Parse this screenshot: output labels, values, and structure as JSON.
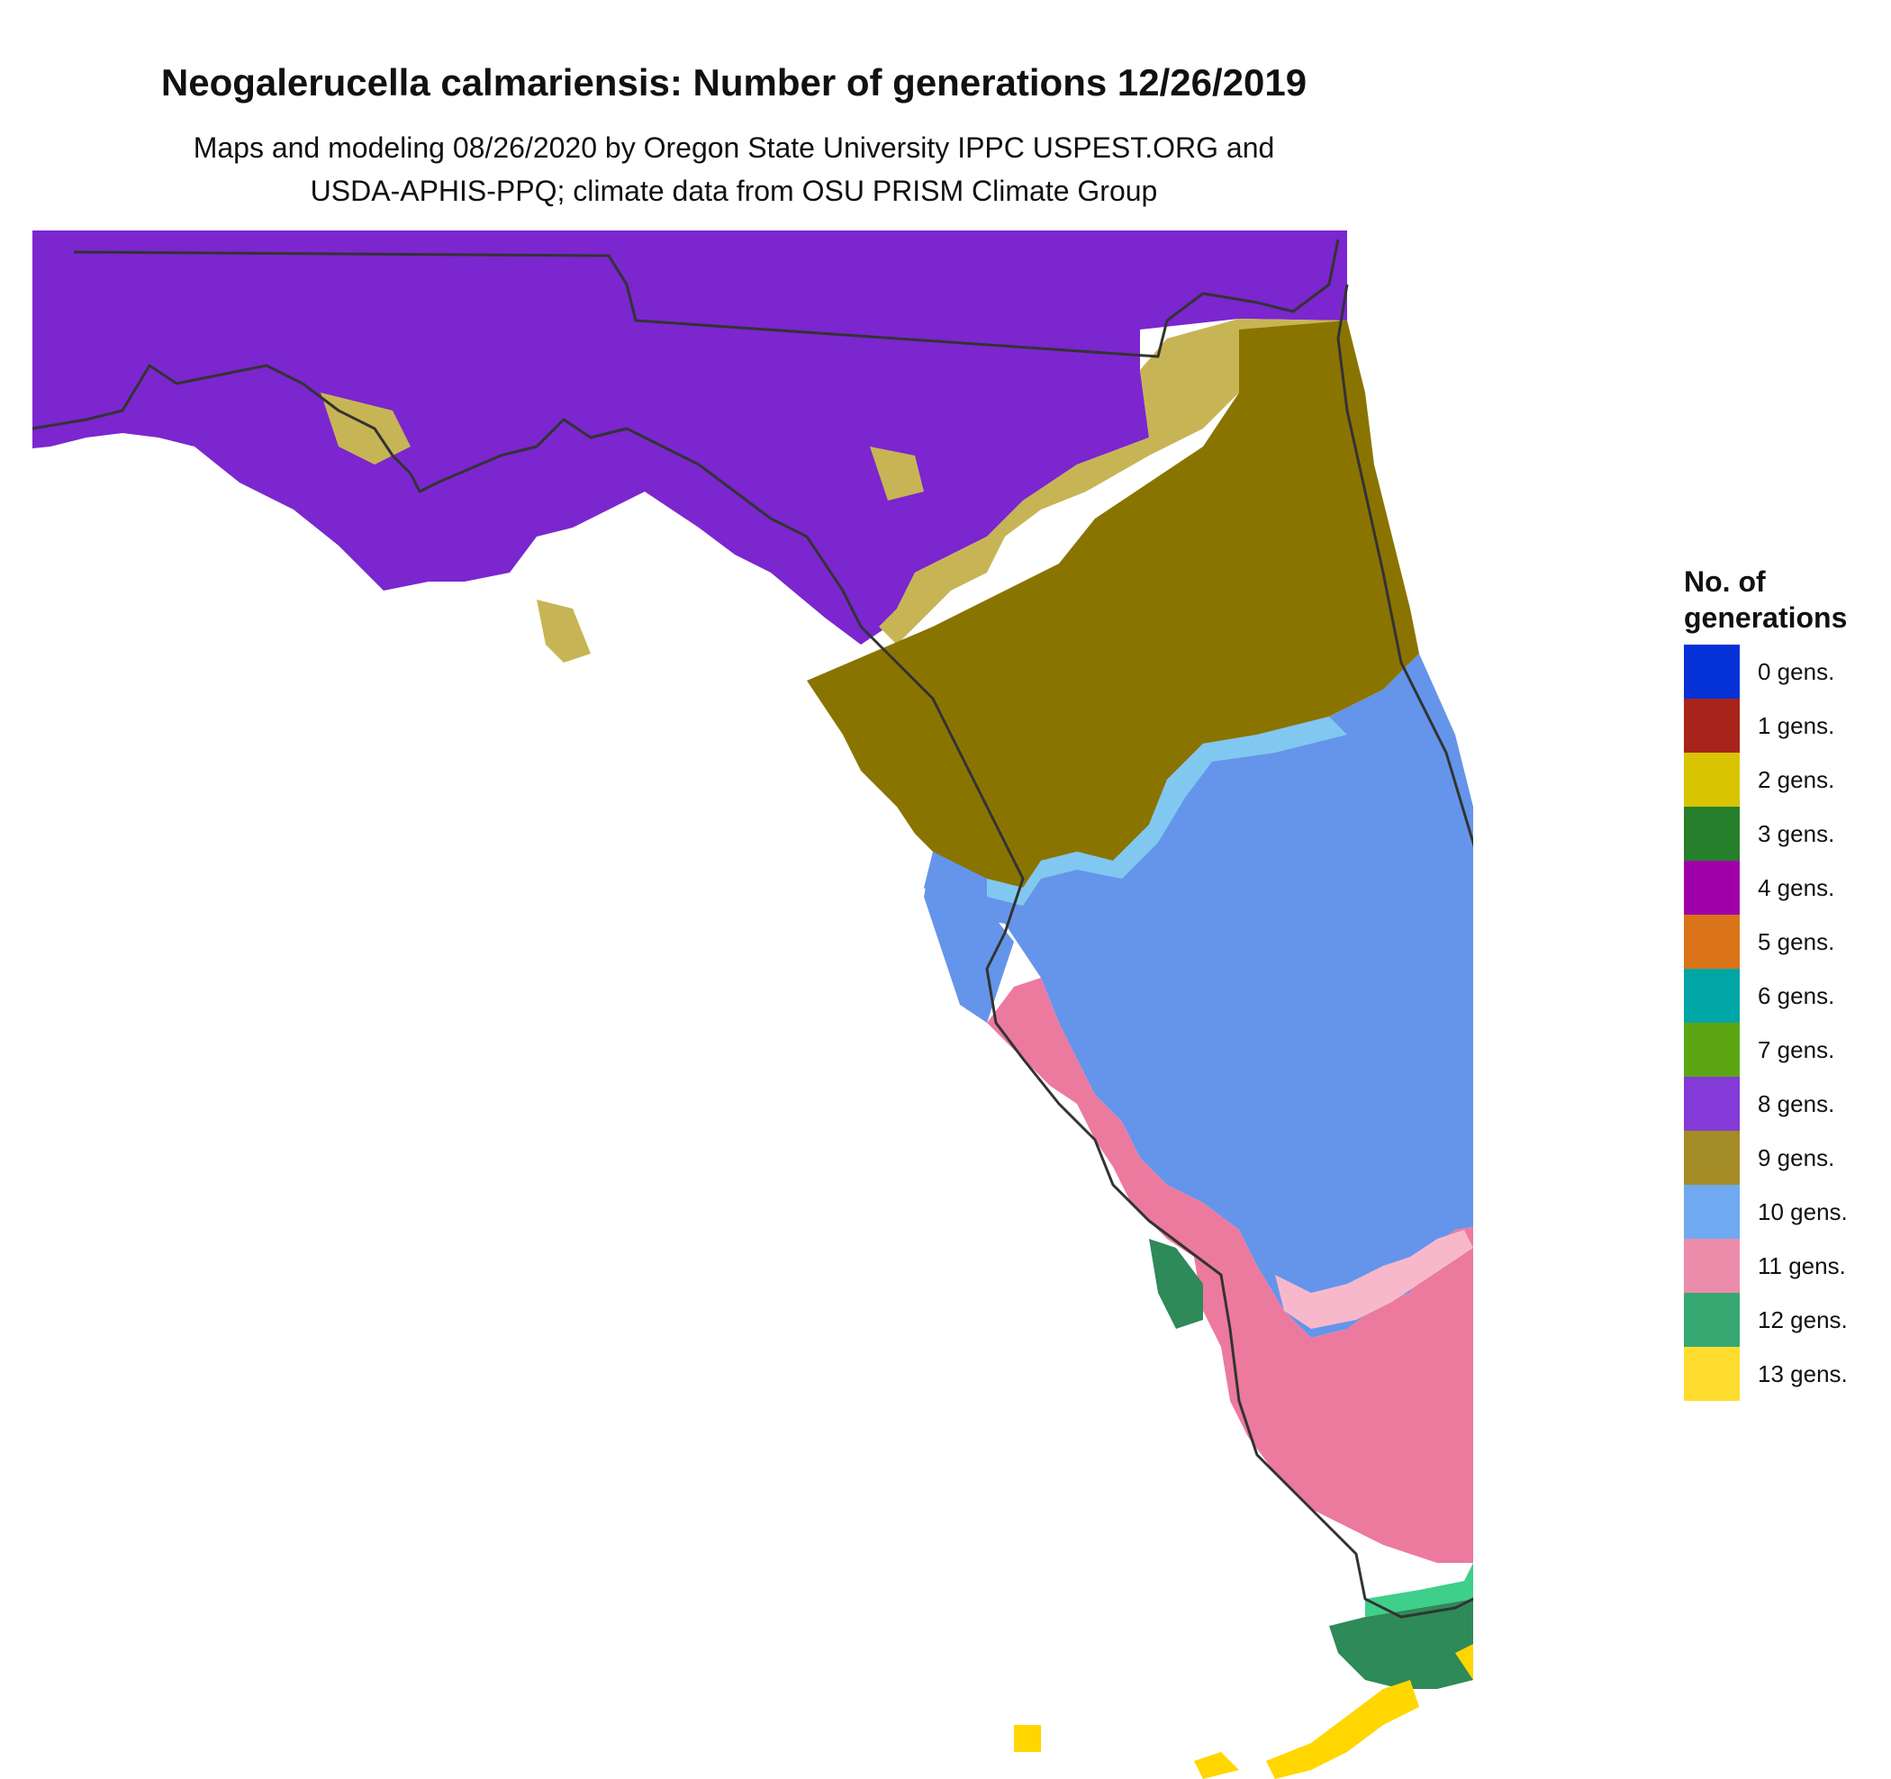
{
  "title": "Neogalerucella calmariensis: Number of generations 12/26/2019",
  "subtitle_line1": "Maps and modeling 08/26/2020 by Oregon State University IPPC USPEST.ORG and",
  "subtitle_line2": "USDA-APHIS-PPQ; climate data from OSU PRISM Climate Group",
  "legend": {
    "title_line1": "No. of",
    "title_line2": "generations",
    "items": [
      {
        "label": "0 gens.",
        "color": "#0432d6"
      },
      {
        "label": "1 gens.",
        "color": "#a8241a"
      },
      {
        "label": "2 gens.",
        "color": "#d8c400"
      },
      {
        "label": "3 gens.",
        "color": "#267f2a"
      },
      {
        "label": "4 gens.",
        "color": "#a000a8"
      },
      {
        "label": "5 gens.",
        "color": "#db7319"
      },
      {
        "label": "6 gens.",
        "color": "#00a5a5"
      },
      {
        "label": "7 gens.",
        "color": "#5ca614"
      },
      {
        "label": "8 gens.",
        "color": "#843ad6"
      },
      {
        "label": "9 gens.",
        "color": "#a48c26"
      },
      {
        "label": "10 gens.",
        "color": "#6faaf0"
      },
      {
        "label": "11 gens.",
        "color": "#ec8cab"
      },
      {
        "label": "12 gens.",
        "color": "#36a872"
      },
      {
        "label": "13 gens.",
        "color": "#ffdd2e"
      }
    ]
  },
  "map_colors": {
    "gen8": "#7b26cf",
    "gen9": "#8a7400",
    "gen9_light": "#c7b555",
    "gen10": "#6495ea",
    "gen10_light": "#80c8f0",
    "gen11": "#ec7a9e",
    "gen11_light": "#f8b8cc",
    "gen12": "#2e8a58",
    "gen12_light": "#3ecf8a",
    "gen13": "#ffd600",
    "outline": "#333333"
  }
}
